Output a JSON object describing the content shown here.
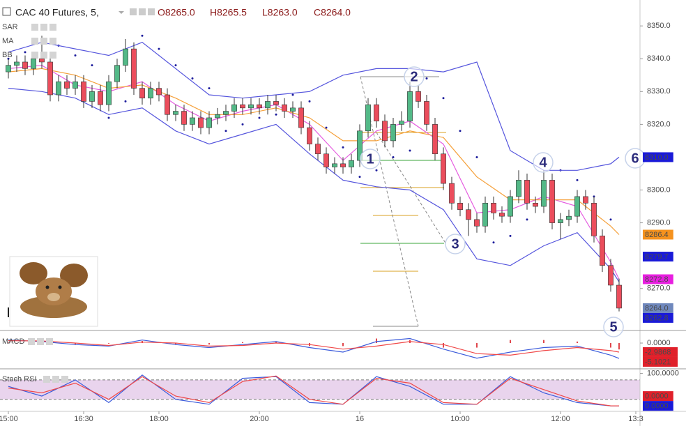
{
  "header": {
    "symbol": "CAC 40 Futures, 5,",
    "ohlc": [
      "O8265.0",
      "H8265.5",
      "L8263.0",
      "C8264.0"
    ]
  },
  "annotations": [
    "1",
    "2",
    "3",
    "4",
    "5",
    "6"
  ],
  "chart_data": [
    {
      "type": "candlestick",
      "up_color": "#53b987",
      "down_color": "#eb4d5c",
      "x": [
        0,
        1,
        2,
        3,
        4,
        5,
        6,
        7,
        8,
        9,
        10,
        11,
        12,
        13,
        14,
        15,
        16,
        17,
        18,
        19,
        20,
        21,
        22,
        23,
        24,
        25,
        26,
        27,
        28,
        29,
        30,
        31,
        32,
        33,
        34,
        35,
        36,
        37,
        38,
        39,
        40,
        41,
        42,
        43,
        44,
        45,
        46,
        47,
        48,
        49,
        50,
        51,
        52,
        53,
        54,
        55,
        56,
        57,
        58,
        59,
        60,
        61,
        62,
        63,
        64,
        65,
        66,
        67,
        68,
        69,
        70,
        71,
        72,
        73
      ],
      "open": [
        8336,
        8338,
        8339,
        8337,
        8340,
        8339,
        8329,
        8333,
        8331,
        8333,
        8327,
        8330,
        8326,
        8333,
        8338,
        8343,
        8331,
        8328,
        8331,
        8329,
        8323,
        8324,
        8320,
        8322,
        8319,
        8322,
        8323,
        8324,
        8326,
        8325,
        8326,
        8325,
        8327,
        8326,
        8324,
        8325,
        8319,
        8314,
        8311,
        8307,
        8308,
        8307,
        8309,
        8318,
        8326,
        8321,
        8315,
        8320,
        8321,
        8330,
        8327,
        8320,
        8311,
        8302,
        8296,
        8294,
        8291,
        8289,
        8296,
        8293,
        8292,
        8298,
        8303,
        8296,
        8295,
        8303,
        8290,
        8291,
        8292,
        8298,
        8296,
        8286,
        8277,
        8271
      ],
      "high": [
        8340,
        8341,
        8341,
        8342,
        8347,
        8341,
        8335,
        8335,
        8335,
        8335,
        8332,
        8332,
        8335,
        8340,
        8346,
        8345,
        8333,
        8333,
        8333,
        8331,
        8326,
        8326,
        8324,
        8324,
        8324,
        8325,
        8326,
        8328,
        8328,
        8328,
        8328,
        8329,
        8329,
        8328,
        8327,
        8327,
        8321,
        8316,
        8313,
        8310,
        8310,
        8311,
        8320,
        8328,
        8328,
        8323,
        8322,
        8324,
        8333,
        8332,
        8329,
        8322,
        8313,
        8304,
        8298,
        8296,
        8293,
        8298,
        8298,
        8295,
        8300,
        8306,
        8305,
        8298,
        8306,
        8305,
        8293,
        8294,
        8300,
        8300,
        8298,
        8288,
        8279,
        8273
      ],
      "low": [
        8334,
        8336,
        8335,
        8335,
        8337,
        8327,
        8327,
        8329,
        8329,
        8325,
        8325,
        8324,
        8324,
        8331,
        8336,
        8329,
        8326,
        8326,
        8327,
        8321,
        8321,
        8318,
        8318,
        8317,
        8317,
        8320,
        8321,
        8322,
        8323,
        8323,
        8323,
        8323,
        8324,
        8322,
        8322,
        8317,
        8312,
        8309,
        8305,
        8305,
        8305,
        8305,
        8307,
        8316,
        8319,
        8313,
        8313,
        8318,
        8319,
        8325,
        8318,
        8309,
        8300,
        8294,
        8292,
        8286,
        8287,
        8287,
        8291,
        8290,
        8290,
        8296,
        8294,
        8293,
        8293,
        8288,
        8285,
        8289,
        8290,
        8294,
        8284,
        8275,
        8269,
        8263
      ],
      "close": [
        8338,
        8339,
        8337,
        8340,
        8339,
        8329,
        8333,
        8331,
        8333,
        8327,
        8330,
        8326,
        8333,
        8338,
        8343,
        8331,
        8328,
        8331,
        8329,
        8323,
        8324,
        8320,
        8322,
        8319,
        8322,
        8323,
        8324,
        8326,
        8325,
        8326,
        8325,
        8327,
        8326,
        8324,
        8325,
        8319,
        8314,
        8311,
        8307,
        8308,
        8307,
        8309,
        8318,
        8326,
        8321,
        8315,
        8320,
        8321,
        8330,
        8327,
        8320,
        8311,
        8302,
        8296,
        8294,
        8291,
        8289,
        8296,
        8293,
        8292,
        8298,
        8303,
        8296,
        8295,
        8303,
        8290,
        8291,
        8292,
        8298,
        8296,
        8286,
        8277,
        8271,
        8264
      ],
      "indicators": [
        {
          "name": "SAR",
          "color": "#1c1c9c",
          "x": [
            0,
            2,
            4,
            6,
            8,
            10,
            12,
            14,
            16,
            18,
            20,
            22,
            24,
            26,
            28,
            30,
            32,
            34,
            36,
            38,
            40,
            42,
            44,
            46,
            48,
            50,
            52,
            54,
            56,
            58,
            60,
            62,
            64,
            66,
            68,
            70,
            72
          ],
          "values": [
            8340,
            8342,
            8346,
            8344,
            8341,
            8338,
            8322,
            8327,
            8347,
            8343,
            8338,
            8334,
            8331,
            8318,
            8320,
            8322,
            8323,
            8329,
            8327,
            8319,
            8313,
            8304,
            8306,
            8310,
            8312,
            8334,
            8328,
            8318,
            8310,
            8284,
            8286,
            8291,
            8296,
            8306,
            8303,
            8298,
            8291
          ]
        },
        {
          "name": "MA",
          "color": "#e55ce0",
          "x": [
            0,
            4,
            8,
            12,
            16,
            20,
            24,
            28,
            32,
            36,
            40,
            44,
            48,
            52,
            56,
            60,
            64,
            68,
            72,
            73
          ],
          "values": [
            8337,
            8338,
            8332,
            8330,
            8333,
            8326,
            8321,
            8324,
            8326,
            8320,
            8309,
            8318,
            8321,
            8314,
            8293,
            8294,
            8298,
            8295,
            8278,
            8272.8
          ]
        },
        {
          "name": "BB",
          "color": "#5555dd",
          "basis_color": "#f5a03a",
          "x": [
            0,
            4,
            8,
            12,
            16,
            20,
            24,
            28,
            32,
            36,
            40,
            44,
            48,
            52,
            56,
            60,
            64,
            68,
            72,
            73
          ],
          "upper": [
            8342,
            8345,
            8343,
            8341,
            8345,
            8337,
            8329,
            8328,
            8329,
            8330,
            8335,
            8337,
            8337,
            8336,
            8339,
            8312,
            8306,
            8306,
            8308,
            8310
          ],
          "basis": [
            8336,
            8337,
            8335,
            8331,
            8332,
            8328,
            8323,
            8323,
            8325,
            8322,
            8315,
            8315,
            8318,
            8316,
            8304,
            8297,
            8297,
            8297,
            8289,
            8286.4
          ],
          "lower": [
            8331,
            8330,
            8328,
            8323,
            8325,
            8318,
            8314,
            8317,
            8320,
            8311,
            8303,
            8301,
            8300,
            8294,
            8279,
            8277,
            8283,
            8287,
            8276,
            8272
          ]
        }
      ],
      "xlim": [
        -1,
        75.5
      ],
      "ylim": [
        8257.4,
        8357.9
      ],
      "yticks": [
        {
          "value": 8350,
          "label": "8350.0"
        },
        {
          "value": 8340,
          "label": "8340.0"
        },
        {
          "value": 8330,
          "label": "8330.0"
        },
        {
          "value": 8320,
          "label": "8320.0"
        },
        {
          "value": 8300,
          "label": "8300.0"
        },
        {
          "value": 8290,
          "label": "8290.0"
        },
        {
          "value": 8270,
          "label": "8270.0"
        }
      ],
      "xticks": [
        {
          "value": 0,
          "label": "15:00"
        },
        {
          "value": 9,
          "label": "16:30"
        },
        {
          "value": 18,
          "label": "18:00"
        },
        {
          "value": 30,
          "label": "20:00"
        },
        {
          "value": 42,
          "label": "16"
        },
        {
          "value": 54,
          "label": "10:00"
        },
        {
          "value": 66,
          "label": "12:00"
        },
        {
          "value": 75,
          "label": "13:3"
        }
      ],
      "price_labels": [
        {
          "value": 8310.0,
          "label": "8310.0",
          "color": "#1a1ad8"
        },
        {
          "value": 8286.4,
          "label": "8286.4",
          "color": "#f5921e"
        },
        {
          "value": 8279.7,
          "label": "8279.7",
          "color": "#1a1ad8"
        },
        {
          "value": 8272.8,
          "label": "8272.8",
          "color": "#e81ee0"
        },
        {
          "value": 8264.0,
          "label": "8264.0",
          "color": "#6f88bd"
        },
        {
          "value": 8262.8,
          "label": "8262.8",
          "color": "#1a1ad8"
        }
      ]
    },
    {
      "type": "macd",
      "title": "MACD",
      "x": [
        0,
        4,
        8,
        12,
        16,
        20,
        24,
        28,
        32,
        36,
        40,
        44,
        48,
        52,
        56,
        60,
        64,
        68,
        72,
        73
      ],
      "series": [
        {
          "color": "#3b5bdb",
          "values": [
            1,
            0.5,
            -0.5,
            -1,
            1,
            -0.5,
            -1.5,
            -0.5,
            0.5,
            -1.5,
            -3,
            0.5,
            1.5,
            -2,
            -5,
            -3,
            -1.5,
            -1,
            -4,
            -5.1021
          ]
        },
        {
          "color": "#f04848",
          "values": [
            0.8,
            0.7,
            0,
            -0.8,
            0.3,
            0,
            -1,
            -0.8,
            0,
            -0.5,
            -2,
            -1,
            0.5,
            -0.5,
            -3.5,
            -4,
            -2.5,
            -1.5,
            -2.5,
            -2.9868
          ]
        }
      ],
      "histogram": {
        "color": "#e0474c",
        "values": [
          0.2,
          -0.2,
          -0.5,
          -0.2,
          0.7,
          -0.5,
          -0.5,
          0.3,
          0.5,
          -1,
          -1,
          1.5,
          1,
          -1.5,
          -1.5,
          1,
          1,
          0.5,
          -1.5,
          -2.1153
        ]
      },
      "xlim": [
        -1,
        75.5
      ],
      "ylim": [
        -8.3,
        3.7
      ],
      "yticks": [
        {
          "value": 0,
          "label": "0.0000"
        }
      ],
      "price_labels": [
        {
          "value": -2.9868,
          "label": "-2.9868",
          "color": "#e0202a"
        },
        {
          "value": -5.1021,
          "label": "-5.1021",
          "color": "#e0202a"
        }
      ]
    },
    {
      "type": "stoch",
      "title": "Stoch RSI",
      "band": [
        20,
        80
      ],
      "band_color": "#e3c9e8",
      "x": [
        0,
        4,
        8,
        12,
        16,
        20,
        24,
        28,
        32,
        36,
        40,
        44,
        48,
        52,
        56,
        60,
        64,
        68,
        72,
        73
      ],
      "series": [
        {
          "color": "#3b5bdb",
          "values": [
            60,
            30,
            80,
            10,
            95,
            20,
            5,
            85,
            90,
            10,
            5,
            90,
            60,
            5,
            5,
            90,
            40,
            10,
            0,
            0
          ]
        },
        {
          "color": "#f04848",
          "values": [
            55,
            40,
            70,
            20,
            90,
            30,
            10,
            75,
            92,
            20,
            5,
            85,
            70,
            10,
            5,
            85,
            50,
            15,
            0,
            0
          ]
        }
      ],
      "xlim": [
        -1,
        75.5
      ],
      "ylim": [
        -17,
        112
      ],
      "yticks": [
        {
          "value": 100,
          "label": "100.0000"
        }
      ],
      "price_labels": [
        {
          "value": 0,
          "label": "0.0000",
          "color": "#1a1ad8"
        },
        {
          "value": 0,
          "label": "0.0000",
          "color": "#e0202a"
        }
      ]
    }
  ]
}
